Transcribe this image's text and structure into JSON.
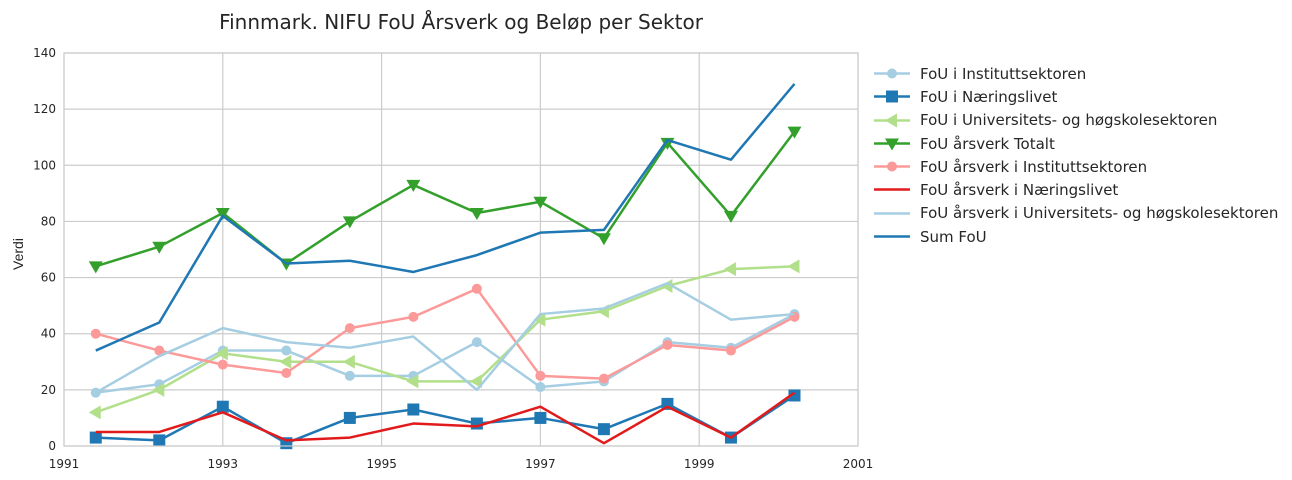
{
  "chart_data": {
    "type": "line",
    "title": "Finnmark. NIFU FoU Årsverk og Beløp per Sektor",
    "xlabel": "",
    "ylabel": "Verdi",
    "xlim": [
      1991,
      2001
    ],
    "ylim": [
      0,
      140
    ],
    "xticks": [
      "1991",
      "1993",
      "1995",
      "1997",
      "1999",
      "2001"
    ],
    "yticks": [
      "0",
      "20",
      "40",
      "60",
      "80",
      "100",
      "120",
      "140"
    ],
    "grid": true,
    "legend_position": "outside-right",
    "x": [
      1991.4,
      1992.2,
      1993.0,
      1993.8,
      1994.6,
      1995.4,
      1996.2,
      1997.0,
      1997.8,
      1998.6,
      1999.4,
      2000.2
    ],
    "series": [
      {
        "name": "FoU i Instituttsektoren",
        "color": "#a6cee3",
        "marker": "circle",
        "values": [
          19,
          22,
          34,
          34,
          25,
          25,
          37,
          21,
          23,
          37,
          35,
          47
        ]
      },
      {
        "name": "FoU i Næringslivet",
        "color": "#1f78b4",
        "marker": "square",
        "values": [
          3,
          2,
          14,
          1,
          10,
          13,
          8,
          10,
          6,
          15,
          3,
          18
        ]
      },
      {
        "name": "FoU i Universitets- og høgskolesektoren",
        "color": "#b2df8a",
        "marker": "triangle-left",
        "values": [
          12,
          20,
          33,
          30,
          30,
          23,
          23,
          45,
          48,
          57,
          63,
          64
        ]
      },
      {
        "name": "FoU årsverk Totalt",
        "color": "#33a02c",
        "marker": "triangle-down",
        "values": [
          64,
          71,
          83,
          65,
          80,
          93,
          83,
          87,
          74,
          108,
          82,
          112
        ]
      },
      {
        "name": "FoU årsverk i Instituttsektoren",
        "color": "#fb9a99",
        "marker": "circle",
        "values": [
          40,
          34,
          29,
          26,
          42,
          46,
          56,
          25,
          24,
          36,
          34,
          46
        ]
      },
      {
        "name": "FoU årsverk i Næringslivet",
        "color": "#e31a1c",
        "marker": "none",
        "values": [
          5,
          5,
          12,
          2,
          3,
          8,
          7,
          14,
          1,
          14,
          3,
          19
        ]
      },
      {
        "name": "FoU årsverk i Universitets- og høgskolesektoren",
        "color": "#a6cee3",
        "marker": "none",
        "values": [
          19,
          32,
          42,
          37,
          35,
          39,
          20,
          47,
          49,
          58,
          45,
          47
        ]
      },
      {
        "name": "Sum FoU",
        "color": "#1f78b4",
        "marker": "none",
        "values": [
          34,
          44,
          82,
          65,
          66,
          62,
          68,
          76,
          77,
          109,
          102,
          129
        ]
      }
    ]
  }
}
